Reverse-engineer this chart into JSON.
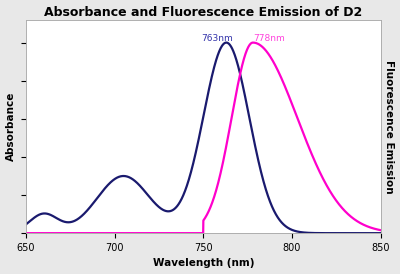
{
  "title": "Absorbance and Fluorescence Emission of D2",
  "xlabel": "Wavelength (nm)",
  "ylabel_left": "Absorbance",
  "ylabel_right": "Fluorescence Emission",
  "xmin": 650,
  "xmax": 850,
  "abs_peak_nm": 763,
  "abs_peak_label": "763nm",
  "fluor_peak_nm": 778,
  "fluor_peak_label": "778nm",
  "abs_color": "#1a1a6e",
  "fluor_color": "#ff00cc",
  "annotation_abs_color": "#3333aa",
  "annotation_fluor_color": "#ff44dd",
  "background_color": "#e8e8e8",
  "plot_bg_color": "#ffffff",
  "title_fontsize": 9,
  "axis_label_fontsize": 7.5
}
